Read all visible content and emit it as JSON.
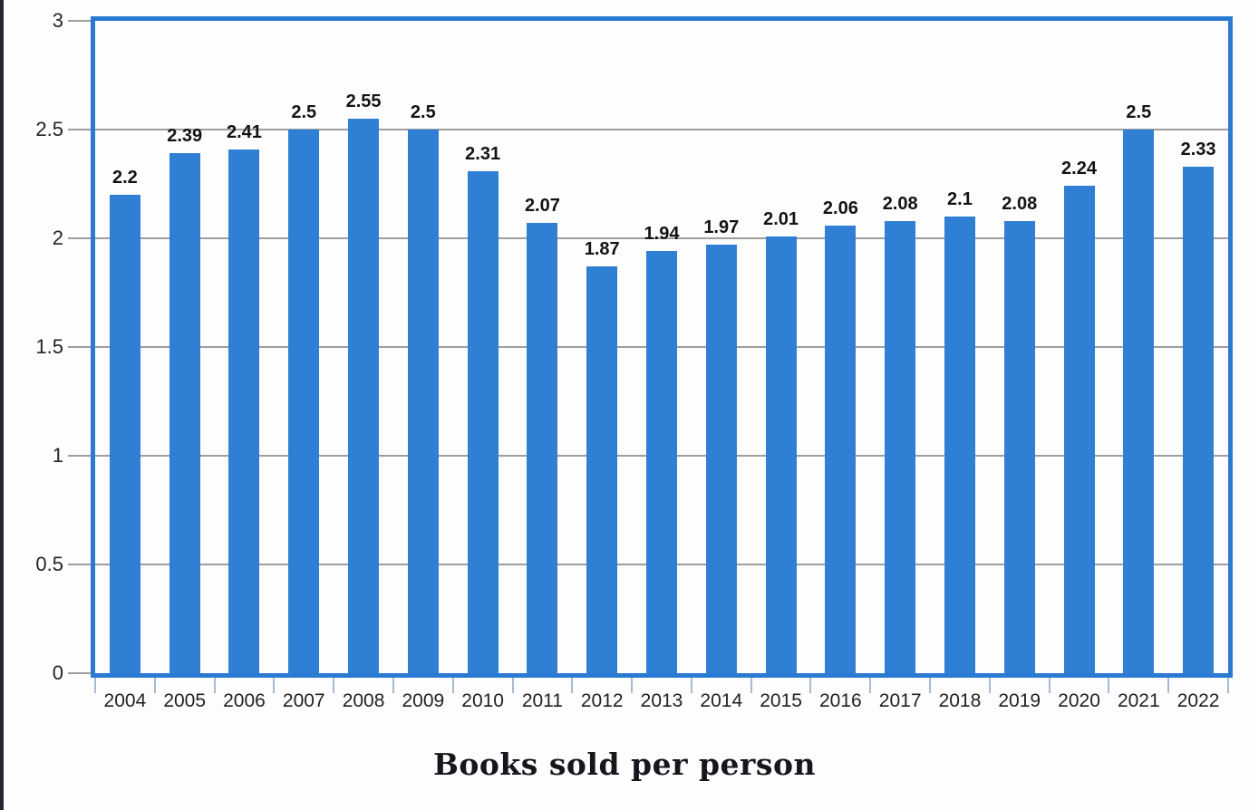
{
  "chart_data": {
    "type": "bar",
    "title": "Books sold per person",
    "categories": [
      "2004",
      "2005",
      "2006",
      "2007",
      "2008",
      "2009",
      "2010",
      "2011",
      "2012",
      "2013",
      "2014",
      "2015",
      "2016",
      "2017",
      "2018",
      "2019",
      "2020",
      "2021",
      "2022"
    ],
    "values": [
      2.2,
      2.39,
      2.41,
      2.5,
      2.55,
      2.5,
      2.31,
      2.07,
      1.87,
      1.94,
      1.97,
      2.01,
      2.06,
      2.08,
      2.1,
      2.08,
      2.24,
      2.5,
      2.33
    ],
    "data_labels": [
      "2.2",
      "2.39",
      "2.41",
      "2.5",
      "2.55",
      "2.5",
      "2.31",
      "2.07",
      "1.87",
      "1.94",
      "1.97",
      "2.01",
      "2.06",
      "2.08",
      "2.1",
      "2.08",
      "2.24",
      "2.5",
      "2.33"
    ],
    "ylim": [
      0,
      3
    ],
    "yticks": [
      0,
      0.5,
      1,
      1.5,
      2,
      2.5,
      3
    ],
    "ytick_labels": [
      "0",
      "0.5",
      "1",
      "1.5",
      "2",
      "2.5",
      "3"
    ],
    "xlabel": "",
    "ylabel": "",
    "legend": "none",
    "grid": "horizontal",
    "bar_color": "#2f80d4",
    "frame_color": "#2b7ad2",
    "gridline_color": "#9e9e9e",
    "xtick_color": "#a9b9d2"
  }
}
